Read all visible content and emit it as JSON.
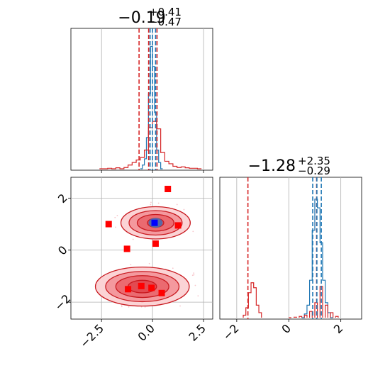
{
  "chart_data": [
    {
      "panel": "top-left",
      "type": "histogram",
      "title": {
        "median": "−0.19",
        "plus": "+0.41",
        "minus": "−0.47"
      },
      "xlim": [
        -4.0,
        2.95
      ],
      "grid": true,
      "quantile_lines": {
        "red": [
          -0.66,
          -0.19,
          0.22
        ],
        "blue": [
          -0.12,
          0.0,
          0.15
        ]
      },
      "series": [
        {
          "color": "#1f77b4",
          "bins": [
            -0.6,
            -0.5,
            -0.4,
            -0.3,
            -0.2,
            -0.1,
            0.0,
            0.1,
            0.2,
            0.3,
            0.4
          ],
          "counts": [
            0.0,
            0.03,
            0.08,
            0.25,
            0.6,
            0.98,
            0.82,
            0.45,
            0.15,
            0.05,
            0.0
          ]
        },
        {
          "color": "#d62728",
          "bins": [
            -2.6,
            -2.4,
            -2.2,
            -2.0,
            -1.8,
            -1.6,
            -1.4,
            -1.2,
            -1.0,
            -0.8,
            -0.6,
            -0.4,
            -0.2,
            0.0,
            0.2,
            0.4,
            0.6,
            0.8,
            1.0,
            1.2,
            1.4,
            1.6,
            1.8,
            2.0,
            2.2
          ],
          "counts": [
            0.0,
            0.0,
            0.004,
            0.0,
            0.008,
            0.0,
            0.01,
            0.03,
            0.05,
            0.07,
            0.09,
            0.15,
            0.33,
            0.38,
            0.32,
            0.13,
            0.06,
            0.04,
            0.02,
            0.01,
            0.015,
            0.008,
            0.004,
            0.004,
            0.0
          ]
        }
      ]
    },
    {
      "panel": "bottom-left",
      "type": "scatter",
      "xlim": [
        -4.0,
        2.95
      ],
      "ylim": [
        -2.65,
        2.8
      ],
      "xticks": [
        "−2.5",
        "0.0",
        "2.5"
      ],
      "yticks": [
        "2",
        "0",
        "−2"
      ],
      "grid": true,
      "red_square_points": [
        {
          "x": 0.75,
          "y": 2.35
        },
        {
          "x": -2.15,
          "y": 1.0
        },
        {
          "x": 1.25,
          "y": 0.95
        },
        {
          "x": 0.15,
          "y": 0.25
        },
        {
          "x": -1.25,
          "y": 0.05
        },
        {
          "x": -0.55,
          "y": -1.38
        },
        {
          "x": -0.05,
          "y": -1.45
        },
        {
          "x": -1.2,
          "y": -1.5
        },
        {
          "x": 0.45,
          "y": -1.65
        }
      ],
      "blue_square_points": [
        {
          "x": 0.1,
          "y": 1.05
        }
      ],
      "contours": [
        {
          "cx": 0.15,
          "cy": 1.05,
          "rx": [
            1.7,
            1.3,
            0.9,
            0.4
          ],
          "ry": [
            0.62,
            0.47,
            0.32,
            0.17
          ]
        },
        {
          "cx": -0.5,
          "cy": -1.4,
          "rx": [
            2.3,
            1.8,
            1.3,
            0.7
          ],
          "ry": [
            0.75,
            0.58,
            0.42,
            0.24
          ]
        }
      ]
    },
    {
      "panel": "bottom-right",
      "type": "histogram",
      "title": {
        "median": "−1.28",
        "plus": "+2.35",
        "minus": "−0.29"
      },
      "xlim": [
        -2.65,
        2.8
      ],
      "xticks": [
        "−2",
        "0",
        "2"
      ],
      "grid": true,
      "quantile_lines": {
        "red": [
          -1.57,
          1.07
        ],
        "blue": [
          0.92,
          1.08,
          1.25
        ]
      },
      "series": [
        {
          "color": "#1f77b4",
          "bins": [
            0.5,
            0.6,
            0.7,
            0.8,
            0.9,
            1.0,
            1.1,
            1.2,
            1.3,
            1.4,
            1.5,
            1.6
          ],
          "counts": [
            0.0,
            0.03,
            0.1,
            0.3,
            0.7,
            0.95,
            0.88,
            0.6,
            0.3,
            0.12,
            0.04,
            0.0
          ]
        },
        {
          "color": "#d62728",
          "bins": [
            -1.75,
            -1.65,
            -1.55,
            -1.45,
            -1.35,
            -1.25,
            -1.15,
            0.0,
            0.2,
            0.4,
            0.6,
            0.8,
            1.0,
            1.2,
            1.4,
            1.6,
            1.8
          ],
          "counts": [
            0.02,
            0.08,
            0.2,
            0.28,
            0.24,
            0.1,
            0.04,
            0.0,
            0.004,
            0.01,
            0.02,
            0.05,
            0.12,
            0.25,
            0.1,
            0.04,
            0.01
          ]
        }
      ]
    }
  ]
}
